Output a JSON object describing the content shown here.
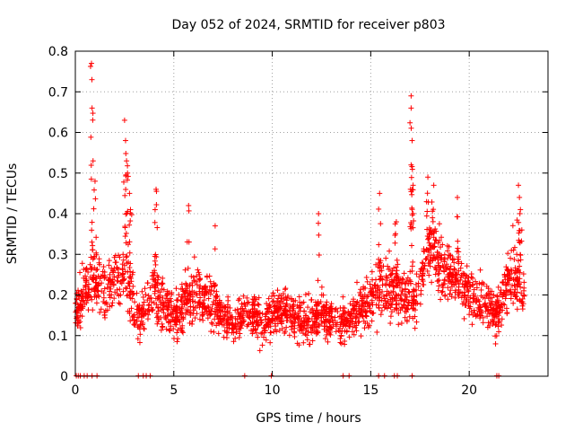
{
  "chart_data": {
    "type": "scatter",
    "title": "Day 052 of 2024, SRMTID for receiver p803",
    "xlabel": "GPS time / hours",
    "ylabel": "SRMTID / TECUs",
    "xlim": [
      0,
      24
    ],
    "ylim": [
      0,
      0.8
    ],
    "xticks": [
      0,
      5,
      10,
      15,
      20
    ],
    "yticks": [
      0,
      0.1,
      0.2,
      0.3,
      0.4,
      0.5,
      0.6,
      0.7,
      0.8
    ],
    "grid": true,
    "marker": "+",
    "series": [
      {
        "name": "SRMTID",
        "color": "#ff0000",
        "trend": [
          {
            "x": 0.0,
            "y": 0.16,
            "spread": 0.1
          },
          {
            "x": 0.8,
            "y": 0.24,
            "spread": 0.14
          },
          {
            "x": 1.5,
            "y": 0.21,
            "spread": 0.12
          },
          {
            "x": 2.5,
            "y": 0.26,
            "spread": 0.14
          },
          {
            "x": 3.2,
            "y": 0.14,
            "spread": 0.1
          },
          {
            "x": 4.0,
            "y": 0.21,
            "spread": 0.13
          },
          {
            "x": 5.0,
            "y": 0.15,
            "spread": 0.1
          },
          {
            "x": 6.0,
            "y": 0.2,
            "spread": 0.12
          },
          {
            "x": 7.0,
            "y": 0.18,
            "spread": 0.12
          },
          {
            "x": 8.0,
            "y": 0.12,
            "spread": 0.07
          },
          {
            "x": 8.7,
            "y": 0.16,
            "spread": 0.09
          },
          {
            "x": 9.5,
            "y": 0.13,
            "spread": 0.08
          },
          {
            "x": 10.5,
            "y": 0.17,
            "spread": 0.1
          },
          {
            "x": 11.5,
            "y": 0.13,
            "spread": 0.09
          },
          {
            "x": 12.5,
            "y": 0.15,
            "spread": 0.1
          },
          {
            "x": 13.5,
            "y": 0.13,
            "spread": 0.08
          },
          {
            "x": 14.5,
            "y": 0.17,
            "spread": 0.1
          },
          {
            "x": 15.5,
            "y": 0.22,
            "spread": 0.14
          },
          {
            "x": 16.5,
            "y": 0.21,
            "spread": 0.14
          },
          {
            "x": 17.2,
            "y": 0.18,
            "spread": 0.1
          },
          {
            "x": 18.0,
            "y": 0.33,
            "spread": 0.14
          },
          {
            "x": 18.8,
            "y": 0.25,
            "spread": 0.12
          },
          {
            "x": 19.5,
            "y": 0.24,
            "spread": 0.12
          },
          {
            "x": 20.5,
            "y": 0.18,
            "spread": 0.1
          },
          {
            "x": 21.5,
            "y": 0.16,
            "spread": 0.1
          },
          {
            "x": 22.2,
            "y": 0.26,
            "spread": 0.14
          },
          {
            "x": 22.8,
            "y": 0.2,
            "spread": 0.12
          }
        ],
        "spikes": [
          {
            "x": 0.82,
            "y": 0.77
          },
          {
            "x": 0.85,
            "y": 0.66
          },
          {
            "x": 0.9,
            "y": 0.53
          },
          {
            "x": 1.0,
            "y": 0.48
          },
          {
            "x": 2.5,
            "y": 0.63
          },
          {
            "x": 2.55,
            "y": 0.58
          },
          {
            "x": 2.6,
            "y": 0.53
          },
          {
            "x": 2.65,
            "y": 0.5
          },
          {
            "x": 2.75,
            "y": 0.45
          },
          {
            "x": 2.8,
            "y": 0.41
          },
          {
            "x": 4.1,
            "y": 0.46
          },
          {
            "x": 4.05,
            "y": 0.41
          },
          {
            "x": 5.75,
            "y": 0.42
          },
          {
            "x": 7.1,
            "y": 0.37
          },
          {
            "x": 12.35,
            "y": 0.4
          },
          {
            "x": 15.45,
            "y": 0.45
          },
          {
            "x": 16.3,
            "y": 0.38
          },
          {
            "x": 17.05,
            "y": 0.69
          },
          {
            "x": 17.05,
            "y": 0.66
          },
          {
            "x": 17.1,
            "y": 0.58
          },
          {
            "x": 17.05,
            "y": 0.52
          },
          {
            "x": 17.15,
            "y": 0.47
          },
          {
            "x": 17.9,
            "y": 0.49
          },
          {
            "x": 18.2,
            "y": 0.47
          },
          {
            "x": 19.4,
            "y": 0.44
          },
          {
            "x": 22.5,
            "y": 0.47
          },
          {
            "x": 22.55,
            "y": 0.44
          },
          {
            "x": 22.6,
            "y": 0.41
          }
        ],
        "zero_points": [
          0.05,
          0.15,
          0.25,
          0.45,
          0.6,
          0.85,
          1.1,
          3.2,
          3.45,
          3.6,
          3.8,
          8.6,
          9.95,
          13.6,
          13.9,
          15.4,
          15.7,
          16.2,
          16.35,
          17.1,
          21.4,
          21.5
        ]
      }
    ]
  }
}
